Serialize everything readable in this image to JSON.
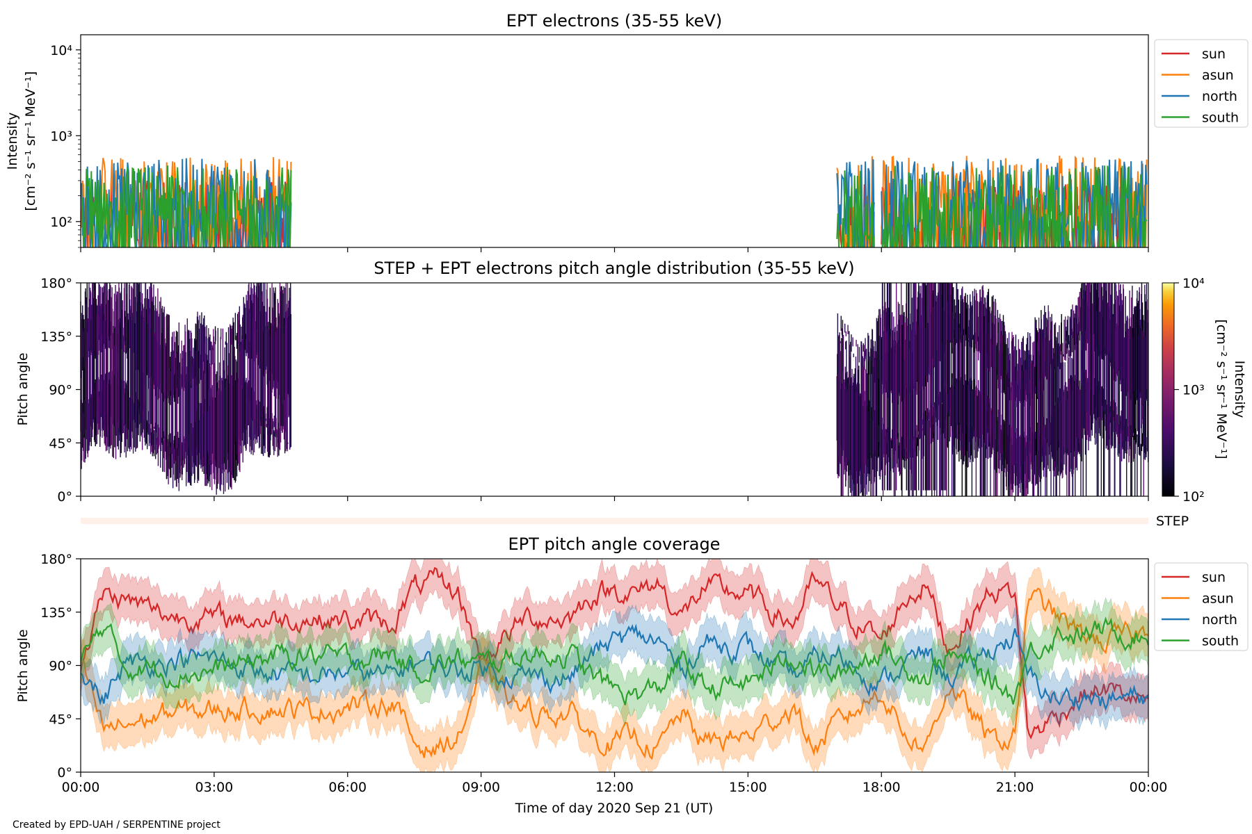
{
  "figure": {
    "credit": "Created by EPD-UAH / SERPENTINE project",
    "xlabel": "Time of day 2020 Sep 21 (UT)",
    "xticks": [
      "00:00",
      "03:00",
      "06:00",
      "09:00",
      "12:00",
      "15:00",
      "18:00",
      "21:00",
      "00:00"
    ],
    "colors": {
      "sun": "#d62728",
      "asun": "#ff7f0e",
      "north": "#1f77b4",
      "south": "#2ca02c"
    }
  },
  "chart_data": [
    {
      "type": "line",
      "title": "EPT electrons (35-55 keV)",
      "ylabel_line1": "Intensity",
      "ylabel_line2": "[cm⁻² s⁻¹ sr⁻¹ MeV⁻¹]",
      "yscale": "log",
      "ylim": [
        50,
        15000
      ],
      "yticks": [
        "10²",
        "10³",
        "10⁴"
      ],
      "ytick_values": [
        100,
        1000,
        10000
      ],
      "x_unit": "hours UT",
      "xlim": [
        0,
        24
      ],
      "data_gaps_hours": [
        [
          4.73,
          17.0
        ]
      ],
      "legend": [
        "sun",
        "asun",
        "north",
        "south"
      ],
      "series": [
        {
          "name": "sun",
          "typical_range": [
            50,
            300
          ]
        },
        {
          "name": "asun",
          "typical_range": [
            60,
            600
          ]
        },
        {
          "name": "north",
          "typical_range": [
            60,
            550
          ]
        },
        {
          "name": "south",
          "typical_range": [
            60,
            450
          ]
        }
      ]
    },
    {
      "type": "heatmap",
      "title": "STEP + EPT electrons pitch angle distribution (35-55 keV)",
      "ylabel": "Pitch angle",
      "ylim": [
        0,
        180
      ],
      "yticks": [
        "0°",
        "45°",
        "90°",
        "135°",
        "180°"
      ],
      "ytick_values": [
        0,
        45,
        90,
        135,
        180
      ],
      "colorbar": {
        "label_line1": "Intensity",
        "label_line2": "[cm⁻² s⁻¹ sr⁻¹ MeV⁻¹]",
        "scale": "log",
        "range": [
          100,
          10000
        ],
        "ticks": [
          "10²",
          "10³",
          "10⁴"
        ],
        "colormap": "inferno"
      },
      "data_windows_hours": [
        [
          0.0,
          4.73
        ],
        [
          17.0,
          24.0
        ]
      ],
      "step_label": "STEP"
    },
    {
      "type": "line",
      "title": "EPT pitch angle coverage",
      "ylabel": "Pitch angle",
      "ylim": [
        0,
        180
      ],
      "yticks": [
        "0°",
        "45°",
        "90°",
        "135°",
        "180°"
      ],
      "ytick_values": [
        0,
        45,
        90,
        135,
        180
      ],
      "legend": [
        "sun",
        "asun",
        "north",
        "south"
      ],
      "series": [
        {
          "name": "sun",
          "x": [
            0,
            0.5,
            1,
            2,
            3,
            4,
            5,
            6,
            7,
            7.5,
            8,
            8.5,
            9,
            10,
            11,
            11.5,
            12,
            12.5,
            13,
            13.5,
            14,
            15,
            16,
            16.5,
            17,
            18,
            18.5,
            19,
            19.5,
            20,
            20.5,
            21,
            21.3,
            22,
            22.5,
            23,
            24
          ],
          "y": [
            90,
            150,
            145,
            132,
            130,
            128,
            130,
            128,
            125,
            155,
            160,
            150,
            95,
            130,
            130,
            150,
            155,
            150,
            160,
            130,
            155,
            150,
            125,
            160,
            140,
            110,
            145,
            160,
            105,
            130,
            155,
            150,
            30,
            50,
            65,
            70,
            60
          ]
        },
        {
          "name": "asun",
          "x": [
            0,
            0.5,
            1,
            2,
            3,
            4,
            5,
            6,
            7,
            7.5,
            8,
            8.5,
            9,
            10,
            11,
            11.5,
            12,
            12.5,
            13,
            13.5,
            14,
            15,
            16,
            16.5,
            17,
            18,
            18.5,
            19,
            19.5,
            20,
            20.5,
            21,
            21.3,
            22,
            22.5,
            23,
            24
          ],
          "y": [
            90,
            35,
            40,
            50,
            52,
            55,
            52,
            55,
            60,
            25,
            20,
            30,
            85,
            50,
            50,
            30,
            25,
            30,
            20,
            50,
            25,
            30,
            55,
            20,
            40,
            70,
            35,
            20,
            75,
            50,
            25,
            30,
            150,
            130,
            115,
            110,
            120
          ]
        },
        {
          "name": "north",
          "x": [
            0,
            0.5,
            1,
            2,
            3,
            4,
            5,
            6,
            7,
            7.5,
            8,
            8.5,
            9,
            10,
            11,
            11.5,
            12,
            12.5,
            13,
            13.5,
            14,
            15,
            16,
            16.5,
            17,
            18,
            18.5,
            19,
            19.5,
            20,
            20.5,
            21,
            21.3,
            22,
            22.5,
            23,
            24
          ],
          "y": [
            90,
            60,
            90,
            95,
            95,
            85,
            80,
            85,
            80,
            95,
            90,
            85,
            90,
            80,
            80,
            100,
            110,
            115,
            110,
            85,
            110,
            105,
            80,
            95,
            100,
            75,
            90,
            100,
            80,
            90,
            105,
            115,
            80,
            60,
            65,
            60,
            65
          ]
        },
        {
          "name": "south",
          "x": [
            0,
            0.5,
            1,
            2,
            3,
            4,
            5,
            6,
            7,
            7.5,
            8,
            8.5,
            9,
            10,
            11,
            11.5,
            12,
            12.5,
            13,
            13.5,
            14,
            15,
            16,
            16.5,
            17,
            18,
            18.5,
            19,
            19.5,
            20,
            20.5,
            21,
            21.3,
            22,
            22.5,
            23,
            24
          ],
          "y": [
            90,
            125,
            90,
            85,
            85,
            95,
            100,
            95,
            100,
            85,
            90,
            95,
            90,
            100,
            100,
            80,
            70,
            65,
            70,
            95,
            70,
            75,
            100,
            85,
            80,
            105,
            90,
            80,
            100,
            90,
            75,
            65,
            100,
            120,
            115,
            120,
            115
          ]
        }
      ]
    }
  ]
}
